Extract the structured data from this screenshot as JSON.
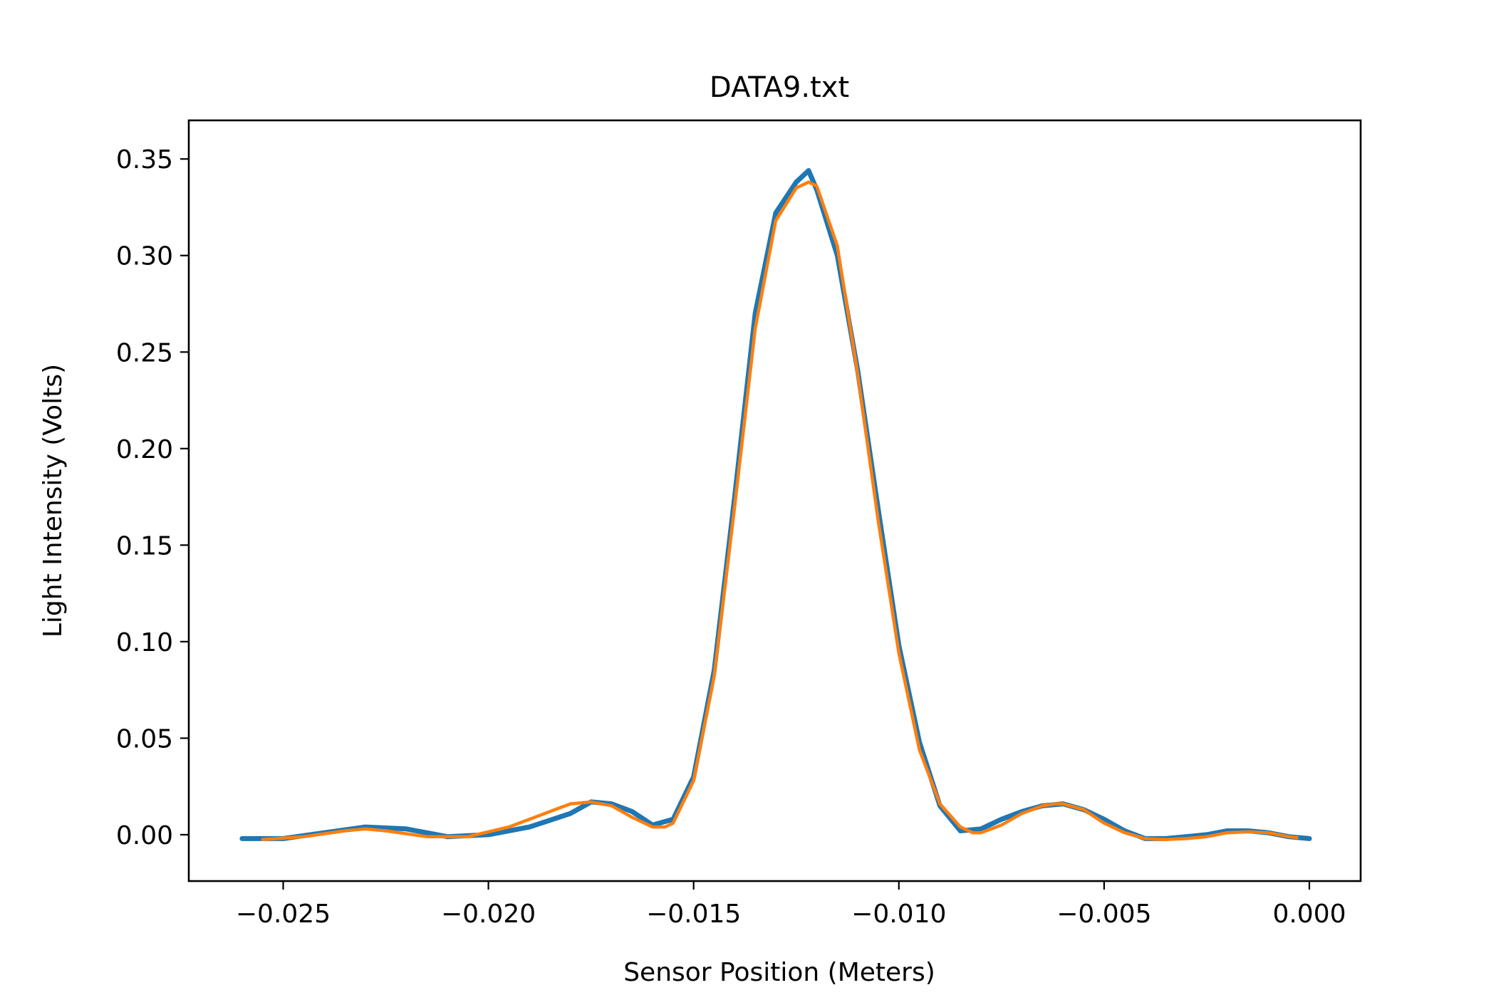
{
  "chart_data": {
    "type": "line",
    "title": "DATA9.txt",
    "xlabel": "Sensor Position (Meters)",
    "ylabel": "Light Intensity (Volts)",
    "xlim": [
      -0.0273,
      0.00125
    ],
    "ylim": [
      -0.024,
      0.37
    ],
    "xticks": [
      -0.025,
      -0.02,
      -0.015,
      -0.01,
      -0.005,
      0.0
    ],
    "xtick_labels": [
      "−0.025",
      "−0.020",
      "−0.015",
      "−0.010",
      "−0.005",
      "0.000"
    ],
    "yticks": [
      0.0,
      0.05,
      0.1,
      0.15,
      0.2,
      0.25,
      0.3,
      0.35
    ],
    "ytick_labels": [
      "0.00",
      "0.05",
      "0.10",
      "0.15",
      "0.20",
      "0.25",
      "0.30",
      "0.35"
    ],
    "grid": false,
    "legend": "none",
    "series": [
      {
        "role": "measured (noisy)",
        "color": "#1f77b4",
        "x": [
          -0.026,
          -0.025,
          -0.024,
          -0.023,
          -0.022,
          -0.021,
          -0.02,
          -0.019,
          -0.018,
          -0.0175,
          -0.017,
          -0.0165,
          -0.016,
          -0.0155,
          -0.015,
          -0.0145,
          -0.014,
          -0.0135,
          -0.013,
          -0.0125,
          -0.0122,
          -0.012,
          -0.0115,
          -0.011,
          -0.0105,
          -0.01,
          -0.0095,
          -0.009,
          -0.0085,
          -0.008,
          -0.0075,
          -0.007,
          -0.0065,
          -0.006,
          -0.0055,
          -0.005,
          -0.0045,
          -0.004,
          -0.0035,
          -0.003,
          -0.0025,
          -0.002,
          -0.0015,
          -0.001,
          -0.0005,
          0.0
        ],
        "y": [
          -0.002,
          -0.002,
          0.001,
          0.004,
          0.003,
          -0.001,
          0.0,
          0.004,
          0.011,
          0.017,
          0.016,
          0.012,
          0.005,
          0.008,
          0.03,
          0.085,
          0.175,
          0.27,
          0.322,
          0.338,
          0.344,
          0.334,
          0.3,
          0.24,
          0.168,
          0.098,
          0.048,
          0.015,
          0.002,
          0.003,
          0.008,
          0.012,
          0.015,
          0.016,
          0.013,
          0.008,
          0.002,
          -0.002,
          -0.002,
          -0.001,
          0.0,
          0.002,
          0.002,
          0.001,
          -0.001,
          -0.002
        ]
      },
      {
        "role": "fit",
        "color": "#ff7f0e",
        "x": [
          -0.0255,
          -0.0245,
          -0.0235,
          -0.023,
          -0.0225,
          -0.0215,
          -0.0205,
          -0.0195,
          -0.0185,
          -0.018,
          -0.0175,
          -0.017,
          -0.0165,
          -0.016,
          -0.0157,
          -0.0155,
          -0.015,
          -0.0145,
          -0.014,
          -0.0135,
          -0.013,
          -0.0125,
          -0.0122,
          -0.012,
          -0.0115,
          -0.011,
          -0.0105,
          -0.01,
          -0.0095,
          -0.009,
          -0.0085,
          -0.0082,
          -0.008,
          -0.0075,
          -0.007,
          -0.0065,
          -0.0062,
          -0.006,
          -0.0055,
          -0.005,
          -0.0045,
          -0.004,
          -0.0035,
          -0.003,
          -0.0025,
          -0.002,
          -0.0015,
          -0.001,
          -0.0005,
          -0.0003
        ],
        "y": [
          -0.0025,
          -0.001,
          0.002,
          0.003,
          0.002,
          -0.001,
          -0.001,
          0.004,
          0.012,
          0.016,
          0.017,
          0.015,
          0.009,
          0.004,
          0.004,
          0.006,
          0.028,
          0.082,
          0.17,
          0.262,
          0.318,
          0.335,
          0.338,
          0.336,
          0.305,
          0.238,
          0.162,
          0.094,
          0.044,
          0.016,
          0.004,
          0.001,
          0.001,
          0.005,
          0.011,
          0.015,
          0.016,
          0.016,
          0.013,
          0.006,
          0.001,
          -0.002,
          -0.0025,
          -0.002,
          -0.001,
          0.001,
          0.0015,
          0.001,
          -0.001,
          -0.0015
        ]
      }
    ]
  }
}
